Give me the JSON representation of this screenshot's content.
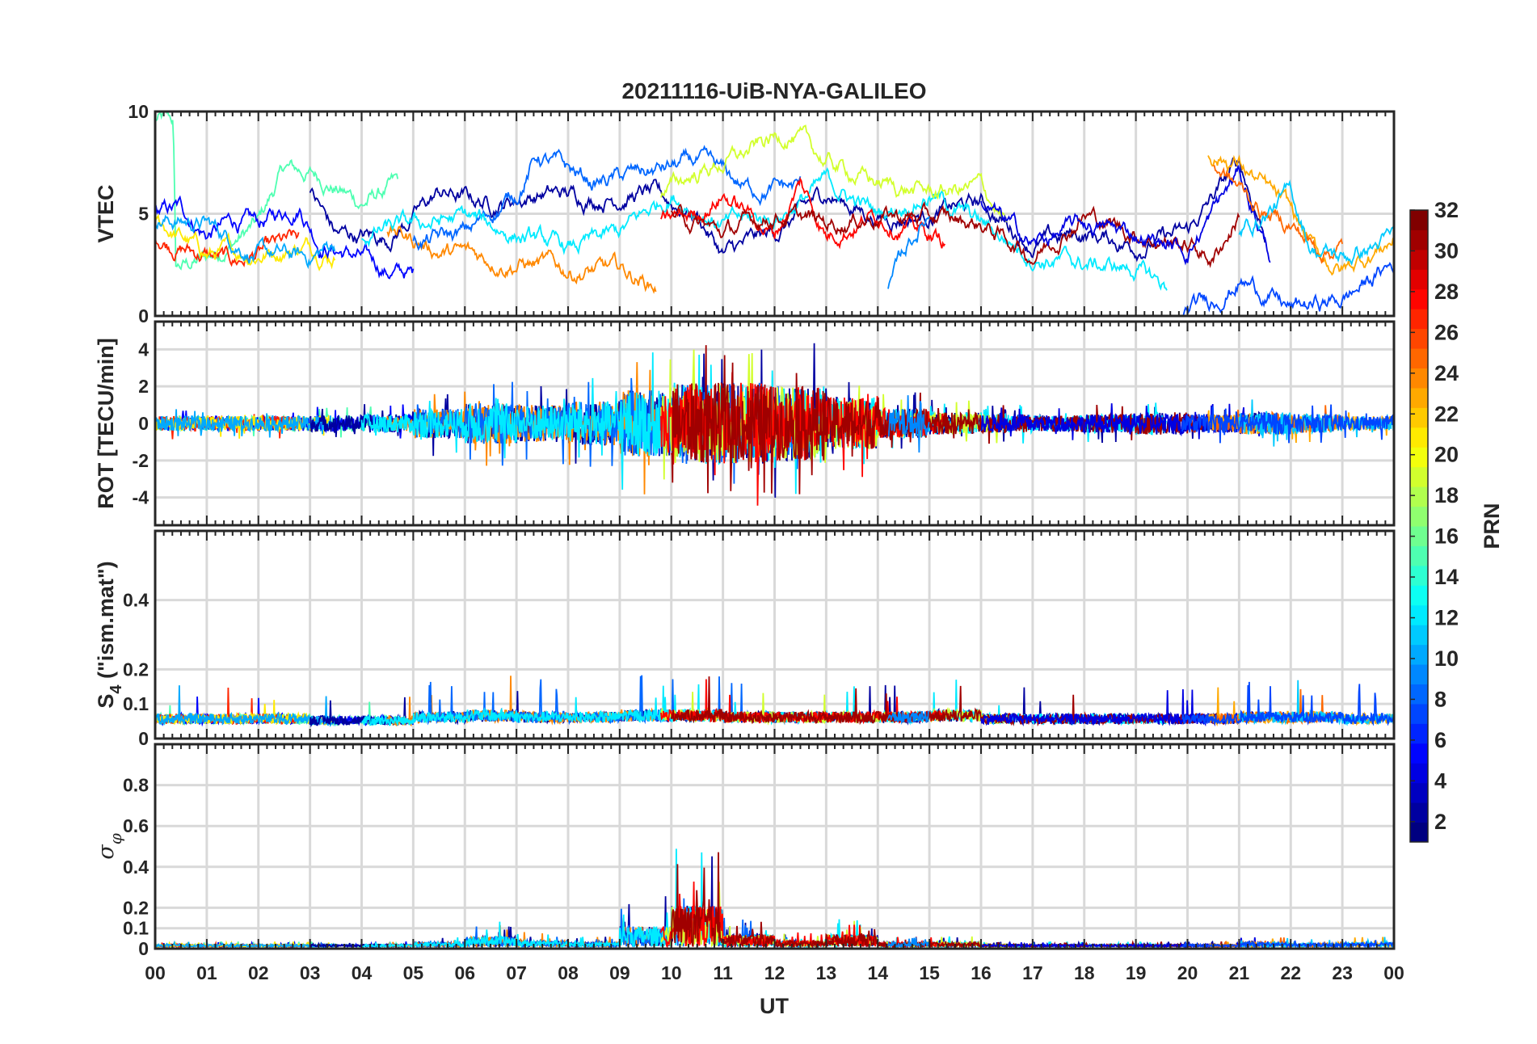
{
  "chart_data": {
    "type": "line",
    "title": "20211116-UiB-NYA-GALILEO",
    "xlabel": "UT",
    "xlim": [
      0,
      24
    ],
    "x_tick_labels": [
      "00",
      "01",
      "02",
      "03",
      "04",
      "05",
      "06",
      "07",
      "08",
      "09",
      "10",
      "11",
      "12",
      "13",
      "14",
      "15",
      "16",
      "17",
      "18",
      "19",
      "20",
      "21",
      "22",
      "23",
      "00"
    ],
    "grid": true,
    "panels": [
      {
        "name": "vtec",
        "ylabel": "VTEC",
        "ylim": [
          0,
          10
        ],
        "yticks": [
          0,
          5,
          10
        ]
      },
      {
        "name": "rot",
        "ylabel": "ROT [TECU/min]",
        "ylim": [
          -5.5,
          5.5
        ],
        "yticks": [
          -4,
          -2,
          0,
          2,
          4
        ]
      },
      {
        "name": "s4",
        "ylabel": "S4 (\"ism.mat\")",
        "ylabel_main": "S",
        "ylabel_sub": "4",
        "ylabel_rest": " (\"ism.mat\")",
        "ylim": [
          0,
          0.6
        ],
        "yticks": [
          0,
          0.1,
          0.2,
          0.4
        ]
      },
      {
        "name": "sigma-phi",
        "ylabel": "σφ",
        "ylabel_main": "σ",
        "ylabel_sub": "φ",
        "ylim": [
          0,
          1
        ],
        "yticks": [
          0,
          0.1,
          0.2,
          0.4,
          0.6,
          0.8
        ]
      }
    ],
    "colorbar": {
      "label": "PRN",
      "range": [
        1,
        32
      ],
      "ticks": [
        2,
        4,
        6,
        8,
        10,
        12,
        14,
        16,
        18,
        20,
        22,
        24,
        26,
        28,
        30,
        32
      ],
      "colormap": "jet"
    },
    "series": [
      {
        "prn": 15,
        "vtec": [
          [
            0,
            9.6
          ],
          [
            0.35,
            9.4
          ],
          [
            0.4,
            2.2
          ],
          [
            1,
            2.8
          ],
          [
            2,
            4.5
          ],
          [
            2.5,
            7.2
          ],
          [
            3.2,
            6.8
          ],
          [
            4,
            5.5
          ],
          [
            4.7,
            6.4
          ]
        ]
      },
      {
        "prn": 5,
        "vtec": [
          [
            0,
            5
          ],
          [
            0.5,
            5.2
          ],
          [
            1,
            4
          ],
          [
            1.5,
            4.6
          ],
          [
            2,
            4.4
          ],
          [
            2.8,
            5.5
          ],
          [
            3.2,
            3.6
          ],
          [
            4,
            2.8
          ],
          [
            4.5,
            2.2
          ],
          [
            5,
            2
          ]
        ]
      },
      {
        "prn": 27,
        "vtec": [
          [
            0,
            4
          ],
          [
            0.7,
            3.2
          ],
          [
            1.5,
            2.6
          ],
          [
            2.2,
            3.2
          ],
          [
            2.8,
            3.6
          ]
        ]
      },
      {
        "prn": 21,
        "vtec": [
          [
            0,
            4.7
          ],
          [
            1,
            3
          ],
          [
            2,
            3.1
          ],
          [
            3,
            3.5
          ],
          [
            3.5,
            3
          ]
        ]
      },
      {
        "prn": 10,
        "vtec": [
          [
            0,
            4.8
          ],
          [
            1,
            4.5
          ],
          [
            2,
            3
          ],
          [
            3,
            2.8
          ],
          [
            3.5,
            3.6
          ]
        ]
      },
      {
        "prn": 2,
        "vtec": [
          [
            3,
            6
          ],
          [
            3.5,
            4
          ],
          [
            4.5,
            3.8
          ],
          [
            5.5,
            6
          ],
          [
            6.5,
            5.5
          ],
          [
            7.5,
            6
          ],
          [
            8.5,
            5.8
          ],
          [
            9.5,
            6
          ],
          [
            10.5,
            5
          ],
          [
            11,
            3
          ],
          [
            12,
            4
          ],
          [
            13,
            6
          ],
          [
            14,
            4.8
          ],
          [
            15,
            5
          ],
          [
            16,
            5.5
          ],
          [
            17,
            3.5
          ],
          [
            18,
            4
          ],
          [
            19,
            3.5
          ],
          [
            20,
            4
          ],
          [
            21,
            7.5
          ],
          [
            21.5,
            4
          ]
        ]
      },
      {
        "prn": 24,
        "vtec": [
          [
            4.5,
            4.2
          ],
          [
            5.5,
            3.2
          ],
          [
            6.5,
            2.8
          ],
          [
            7.5,
            2.5
          ],
          [
            8,
            2.2
          ],
          [
            9,
            2.2
          ],
          [
            9.7,
            1.5
          ]
        ]
      },
      {
        "prn": 8,
        "vtec": [
          [
            5,
            3.5
          ],
          [
            6,
            4
          ],
          [
            7,
            6
          ],
          [
            7.4,
            7.8
          ],
          [
            8.5,
            6.5
          ],
          [
            9.5,
            7
          ],
          [
            10.5,
            7.5
          ],
          [
            11.5,
            6.2
          ],
          [
            12.5,
            6.3
          ]
        ]
      },
      {
        "prn": 12,
        "vtec": [
          [
            4,
            4
          ],
          [
            6,
            4.8
          ],
          [
            8,
            3.2
          ],
          [
            9,
            4
          ],
          [
            10,
            6
          ],
          [
            11,
            4.5
          ],
          [
            12,
            4.8
          ],
          [
            13,
            6.5
          ],
          [
            14,
            5
          ],
          [
            15,
            6
          ],
          [
            16,
            4.5
          ],
          [
            17,
            3
          ],
          [
            18,
            2.5
          ],
          [
            19,
            2.3
          ],
          [
            19.6,
            1.4
          ]
        ]
      },
      {
        "prn": 19,
        "vtec": [
          [
            9.8,
            6
          ],
          [
            10.5,
            7
          ],
          [
            11.5,
            8
          ],
          [
            12.3,
            9
          ],
          [
            13,
            7.5
          ],
          [
            14,
            6.5
          ],
          [
            15,
            6
          ],
          [
            16,
            6.3
          ],
          [
            16.5,
            4.5
          ]
        ]
      },
      {
        "prn": 28,
        "vtec": [
          [
            9.8,
            4.5
          ],
          [
            10.5,
            5
          ],
          [
            11,
            6
          ],
          [
            12,
            4
          ],
          [
            12.5,
            6.5
          ],
          [
            13,
            4
          ],
          [
            14,
            5
          ],
          [
            15,
            4
          ],
          [
            15.3,
            3.6
          ]
        ]
      },
      {
        "prn": 31,
        "vtec": [
          [
            10,
            5
          ],
          [
            11,
            4
          ],
          [
            12,
            5
          ],
          [
            13,
            4.5
          ],
          [
            14,
            5
          ],
          [
            16,
            4.5
          ],
          [
            17,
            3
          ],
          [
            18,
            5
          ],
          [
            19,
            4
          ],
          [
            20,
            3.5
          ],
          [
            20.5,
            2.8
          ],
          [
            21,
            5
          ]
        ]
      },
      {
        "prn": 4,
        "vtec": [
          [
            16,
            5.5
          ],
          [
            17,
            3.5
          ],
          [
            18,
            4.5
          ],
          [
            19,
            4
          ],
          [
            20,
            3.2
          ],
          [
            21,
            7
          ],
          [
            21.6,
            3
          ]
        ]
      },
      {
        "prn": 9,
        "vtec": [
          [
            14.2,
            1.1
          ],
          [
            14.6,
            3.5
          ],
          [
            15,
            5
          ]
        ]
      },
      {
        "prn": 23,
        "vtec": [
          [
            20.4,
            8
          ],
          [
            21,
            7.5
          ],
          [
            22,
            5
          ],
          [
            22.5,
            3
          ],
          [
            23,
            2.2
          ],
          [
            24,
            3.8
          ]
        ]
      },
      {
        "prn": 25,
        "vtec": [
          [
            20.5,
            7.5
          ],
          [
            21.5,
            5
          ],
          [
            22,
            4.5
          ],
          [
            22.5,
            3.3
          ],
          [
            23,
            3.4
          ]
        ]
      },
      {
        "prn": 11,
        "vtec": [
          [
            21,
            4
          ],
          [
            22,
            6
          ],
          [
            22.4,
            3.4
          ],
          [
            23,
            2.8
          ],
          [
            24,
            3.8
          ]
        ]
      },
      {
        "prn": 7,
        "vtec": [
          [
            19.9,
            0.1
          ],
          [
            20.5,
            0.8
          ],
          [
            21,
            1.8
          ],
          [
            21.5,
            1.2
          ],
          [
            22,
            0.3
          ],
          [
            23,
            0.8
          ],
          [
            24,
            2.6
          ]
        ]
      }
    ],
    "rot_envelope_by_hour": [
      0.4,
      0.4,
      0.4,
      0.45,
      0.5,
      0.8,
      1.1,
      1.0,
      1.2,
      1.8,
      2.2,
      2.2,
      2.0,
      1.4,
      0.8,
      0.6,
      0.5,
      0.45,
      0.5,
      0.6,
      0.5,
      0.6,
      0.5,
      0.4
    ],
    "s4_envelope_by_hour": [
      0.06,
      0.06,
      0.06,
      0.055,
      0.055,
      0.065,
      0.07,
      0.065,
      0.065,
      0.07,
      0.07,
      0.065,
      0.065,
      0.065,
      0.065,
      0.07,
      0.06,
      0.06,
      0.06,
      0.06,
      0.06,
      0.065,
      0.065,
      0.06
    ],
    "sigma_envelope_by_hour": [
      0.01,
      0.01,
      0.01,
      0.01,
      0.01,
      0.02,
      0.05,
      0.03,
      0.02,
      0.1,
      0.2,
      0.06,
      0.03,
      0.06,
      0.02,
      0.02,
      0.01,
      0.01,
      0.01,
      0.01,
      0.01,
      0.02,
      0.015,
      0.02
    ]
  }
}
